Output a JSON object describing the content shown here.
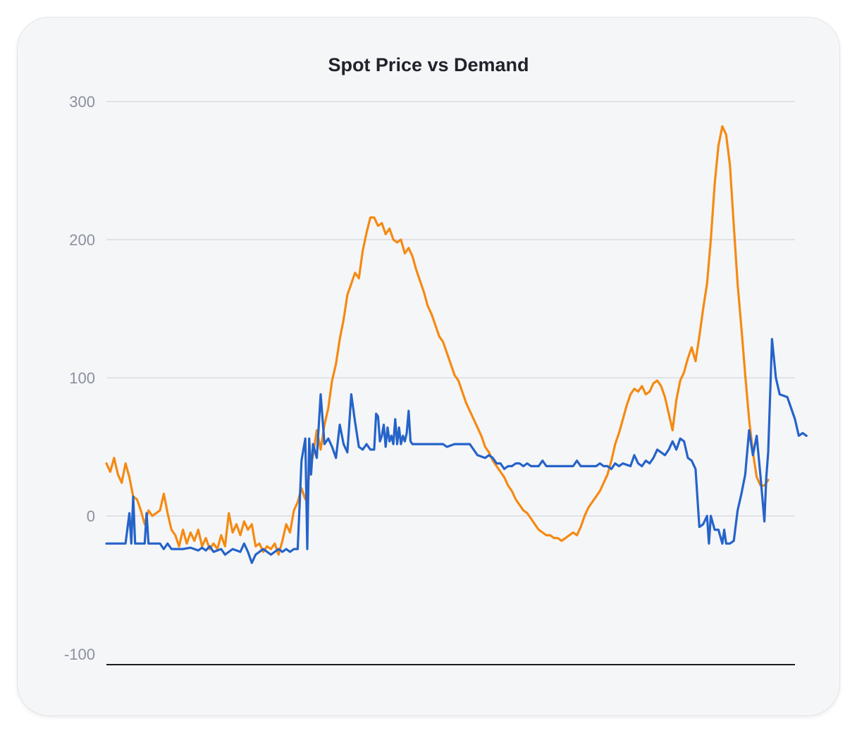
{
  "chart_data": {
    "type": "line",
    "title": "Spot Price vs Demand",
    "xlabel": "",
    "ylabel": "",
    "ylim": [
      -100,
      300
    ],
    "y_ticks": [
      "300",
      "200",
      "100",
      "0",
      "-100"
    ],
    "y_tick_values": [
      300,
      200,
      100,
      0,
      -100
    ],
    "grid": "horizontal",
    "legend": "none",
    "x_count": 361,
    "series": [
      {
        "color": "#f58a12",
        "keypoints": [
          [
            0,
            38
          ],
          [
            2,
            32
          ],
          [
            4,
            42
          ],
          [
            6,
            30
          ],
          [
            8,
            24
          ],
          [
            10,
            38
          ],
          [
            12,
            28
          ],
          [
            14,
            14
          ],
          [
            16,
            12
          ],
          [
            18,
            4
          ],
          [
            20,
            -6
          ],
          [
            22,
            4
          ],
          [
            24,
            0
          ],
          [
            26,
            2
          ],
          [
            28,
            4
          ],
          [
            30,
            16
          ],
          [
            32,
            2
          ],
          [
            34,
            -10
          ],
          [
            36,
            -14
          ],
          [
            38,
            -22
          ],
          [
            40,
            -10
          ],
          [
            42,
            -20
          ],
          [
            44,
            -12
          ],
          [
            46,
            -18
          ],
          [
            48,
            -10
          ],
          [
            50,
            -22
          ],
          [
            52,
            -16
          ],
          [
            54,
            -24
          ],
          [
            56,
            -20
          ],
          [
            58,
            -24
          ],
          [
            60,
            -14
          ],
          [
            62,
            -22
          ],
          [
            64,
            2
          ],
          [
            66,
            -12
          ],
          [
            68,
            -6
          ],
          [
            70,
            -14
          ],
          [
            72,
            -4
          ],
          [
            74,
            -10
          ],
          [
            76,
            -6
          ],
          [
            78,
            -22
          ],
          [
            80,
            -20
          ],
          [
            82,
            -26
          ],
          [
            84,
            -22
          ],
          [
            86,
            -24
          ],
          [
            88,
            -20
          ],
          [
            90,
            -28
          ],
          [
            92,
            -18
          ],
          [
            94,
            -6
          ],
          [
            96,
            -12
          ],
          [
            98,
            4
          ],
          [
            100,
            10
          ],
          [
            102,
            20
          ],
          [
            104,
            12
          ],
          [
            106,
            30
          ],
          [
            108,
            44
          ],
          [
            110,
            62
          ],
          [
            112,
            48
          ],
          [
            114,
            66
          ],
          [
            116,
            78
          ],
          [
            118,
            98
          ],
          [
            120,
            110
          ],
          [
            122,
            128
          ],
          [
            124,
            142
          ],
          [
            126,
            160
          ],
          [
            128,
            168
          ],
          [
            130,
            176
          ],
          [
            132,
            172
          ],
          [
            134,
            192
          ],
          [
            136,
            205
          ],
          [
            138,
            216
          ],
          [
            140,
            216
          ],
          [
            142,
            210
          ],
          [
            144,
            212
          ],
          [
            146,
            204
          ],
          [
            148,
            208
          ],
          [
            150,
            200
          ],
          [
            152,
            198
          ],
          [
            154,
            200
          ],
          [
            156,
            190
          ],
          [
            158,
            194
          ],
          [
            160,
            188
          ],
          [
            162,
            178
          ],
          [
            164,
            170
          ],
          [
            166,
            162
          ],
          [
            168,
            152
          ],
          [
            170,
            146
          ],
          [
            172,
            138
          ],
          [
            174,
            130
          ],
          [
            176,
            126
          ],
          [
            178,
            118
          ],
          [
            180,
            110
          ],
          [
            182,
            102
          ],
          [
            184,
            98
          ],
          [
            186,
            90
          ],
          [
            188,
            82
          ],
          [
            190,
            76
          ],
          [
            192,
            70
          ],
          [
            194,
            64
          ],
          [
            196,
            58
          ],
          [
            198,
            50
          ],
          [
            200,
            46
          ],
          [
            202,
            40
          ],
          [
            204,
            36
          ],
          [
            206,
            32
          ],
          [
            208,
            28
          ],
          [
            210,
            22
          ],
          [
            212,
            18
          ],
          [
            214,
            12
          ],
          [
            216,
            8
          ],
          [
            218,
            4
          ],
          [
            220,
            2
          ],
          [
            222,
            -2
          ],
          [
            224,
            -6
          ],
          [
            226,
            -10
          ],
          [
            228,
            -12
          ],
          [
            230,
            -14
          ],
          [
            232,
            -14
          ],
          [
            234,
            -16
          ],
          [
            236,
            -16
          ],
          [
            238,
            -18
          ],
          [
            240,
            -16
          ],
          [
            242,
            -14
          ],
          [
            244,
            -12
          ],
          [
            246,
            -14
          ],
          [
            248,
            -8
          ],
          [
            250,
            0
          ],
          [
            252,
            6
          ],
          [
            254,
            10
          ],
          [
            256,
            14
          ],
          [
            258,
            18
          ],
          [
            260,
            24
          ],
          [
            262,
            30
          ],
          [
            264,
            40
          ],
          [
            266,
            52
          ],
          [
            268,
            60
          ],
          [
            270,
            70
          ],
          [
            272,
            80
          ],
          [
            274,
            88
          ],
          [
            276,
            92
          ],
          [
            278,
            90
          ],
          [
            280,
            94
          ],
          [
            282,
            88
          ],
          [
            284,
            90
          ],
          [
            286,
            96
          ],
          [
            288,
            98
          ],
          [
            290,
            94
          ],
          [
            292,
            86
          ],
          [
            294,
            74
          ],
          [
            296,
            62
          ],
          [
            298,
            84
          ],
          [
            300,
            98
          ],
          [
            302,
            104
          ],
          [
            304,
            114
          ],
          [
            306,
            122
          ],
          [
            308,
            112
          ],
          [
            310,
            130
          ],
          [
            312,
            150
          ],
          [
            314,
            168
          ],
          [
            316,
            200
          ],
          [
            318,
            240
          ],
          [
            320,
            268
          ],
          [
            322,
            282
          ],
          [
            324,
            276
          ],
          [
            326,
            254
          ],
          [
            328,
            210
          ],
          [
            330,
            168
          ],
          [
            332,
            136
          ],
          [
            334,
            102
          ],
          [
            336,
            70
          ],
          [
            338,
            46
          ],
          [
            340,
            28
          ],
          [
            342,
            22
          ],
          [
            344,
            22
          ],
          [
            346,
            26
          ]
        ]
      },
      {
        "color": "#2563c9",
        "keypoints": [
          [
            0,
            -20
          ],
          [
            6,
            -20
          ],
          [
            10,
            -20
          ],
          [
            12,
            2
          ],
          [
            13,
            -20
          ],
          [
            14,
            14
          ],
          [
            15,
            -20
          ],
          [
            20,
            -20
          ],
          [
            21,
            2
          ],
          [
            22,
            -20
          ],
          [
            28,
            -20
          ],
          [
            30,
            -24
          ],
          [
            32,
            -20
          ],
          [
            34,
            -24
          ],
          [
            40,
            -24
          ],
          [
            44,
            -23
          ],
          [
            48,
            -25
          ],
          [
            50,
            -23
          ],
          [
            52,
            -25
          ],
          [
            54,
            -22
          ],
          [
            56,
            -26
          ],
          [
            60,
            -24
          ],
          [
            62,
            -28
          ],
          [
            66,
            -24
          ],
          [
            70,
            -26
          ],
          [
            72,
            -20
          ],
          [
            74,
            -26
          ],
          [
            76,
            -34
          ],
          [
            78,
            -28
          ],
          [
            82,
            -24
          ],
          [
            86,
            -28
          ],
          [
            90,
            -24
          ],
          [
            92,
            -26
          ],
          [
            94,
            -24
          ],
          [
            96,
            -26
          ],
          [
            98,
            -24
          ],
          [
            100,
            -24
          ],
          [
            102,
            40
          ],
          [
            104,
            56
          ],
          [
            105,
            -24
          ],
          [
            106,
            56
          ],
          [
            107,
            30
          ],
          [
            108,
            52
          ],
          [
            110,
            42
          ],
          [
            112,
            88
          ],
          [
            114,
            52
          ],
          [
            116,
            56
          ],
          [
            118,
            50
          ],
          [
            120,
            42
          ],
          [
            122,
            66
          ],
          [
            124,
            52
          ],
          [
            126,
            46
          ],
          [
            128,
            88
          ],
          [
            130,
            68
          ],
          [
            132,
            50
          ],
          [
            134,
            48
          ],
          [
            136,
            52
          ],
          [
            138,
            48
          ],
          [
            140,
            48
          ],
          [
            141,
            74
          ],
          [
            142,
            72
          ],
          [
            143,
            54
          ],
          [
            144,
            58
          ],
          [
            145,
            66
          ],
          [
            146,
            50
          ],
          [
            147,
            64
          ],
          [
            148,
            54
          ],
          [
            149,
            58
          ],
          [
            150,
            52
          ],
          [
            151,
            70
          ],
          [
            152,
            52
          ],
          [
            153,
            64
          ],
          [
            154,
            52
          ],
          [
            155,
            58
          ],
          [
            156,
            54
          ],
          [
            157,
            60
          ],
          [
            158,
            76
          ],
          [
            159,
            54
          ],
          [
            160,
            52
          ],
          [
            170,
            52
          ],
          [
            176,
            52
          ],
          [
            178,
            50
          ],
          [
            182,
            52
          ],
          [
            190,
            52
          ],
          [
            194,
            44
          ],
          [
            198,
            42
          ],
          [
            200,
            44
          ],
          [
            202,
            42
          ],
          [
            204,
            38
          ],
          [
            206,
            38
          ],
          [
            208,
            34
          ],
          [
            210,
            36
          ],
          [
            212,
            36
          ],
          [
            214,
            38
          ],
          [
            216,
            38
          ],
          [
            218,
            36
          ],
          [
            220,
            38
          ],
          [
            222,
            36
          ],
          [
            224,
            36
          ],
          [
            226,
            36
          ],
          [
            228,
            40
          ],
          [
            230,
            36
          ],
          [
            236,
            36
          ],
          [
            244,
            36
          ],
          [
            246,
            40
          ],
          [
            248,
            36
          ],
          [
            252,
            36
          ],
          [
            256,
            36
          ],
          [
            258,
            38
          ],
          [
            260,
            36
          ],
          [
            262,
            36
          ],
          [
            264,
            34
          ],
          [
            266,
            38
          ],
          [
            268,
            36
          ],
          [
            270,
            38
          ],
          [
            274,
            36
          ],
          [
            276,
            44
          ],
          [
            278,
            38
          ],
          [
            280,
            36
          ],
          [
            282,
            40
          ],
          [
            284,
            38
          ],
          [
            286,
            42
          ],
          [
            288,
            48
          ],
          [
            290,
            46
          ],
          [
            292,
            44
          ],
          [
            294,
            48
          ],
          [
            296,
            54
          ],
          [
            298,
            48
          ],
          [
            300,
            56
          ],
          [
            302,
            54
          ],
          [
            304,
            42
          ],
          [
            306,
            40
          ],
          [
            308,
            34
          ],
          [
            310,
            -8
          ],
          [
            312,
            -6
          ],
          [
            314,
            0
          ],
          [
            315,
            -20
          ],
          [
            316,
            0
          ],
          [
            318,
            -10
          ],
          [
            320,
            -10
          ],
          [
            322,
            -20
          ],
          [
            323,
            -10
          ],
          [
            324,
            -20
          ],
          [
            326,
            -20
          ],
          [
            328,
            -18
          ],
          [
            330,
            4
          ],
          [
            332,
            16
          ],
          [
            334,
            30
          ],
          [
            336,
            62
          ],
          [
            338,
            44
          ],
          [
            340,
            58
          ],
          [
            342,
            28
          ],
          [
            344,
            -4
          ],
          [
            345,
            28
          ],
          [
            346,
            46
          ],
          [
            348,
            128
          ],
          [
            350,
            100
          ],
          [
            352,
            88
          ],
          [
            356,
            86
          ],
          [
            360,
            70
          ],
          [
            362,
            58
          ],
          [
            364,
            60
          ],
          [
            366,
            58
          ]
        ]
      }
    ]
  }
}
